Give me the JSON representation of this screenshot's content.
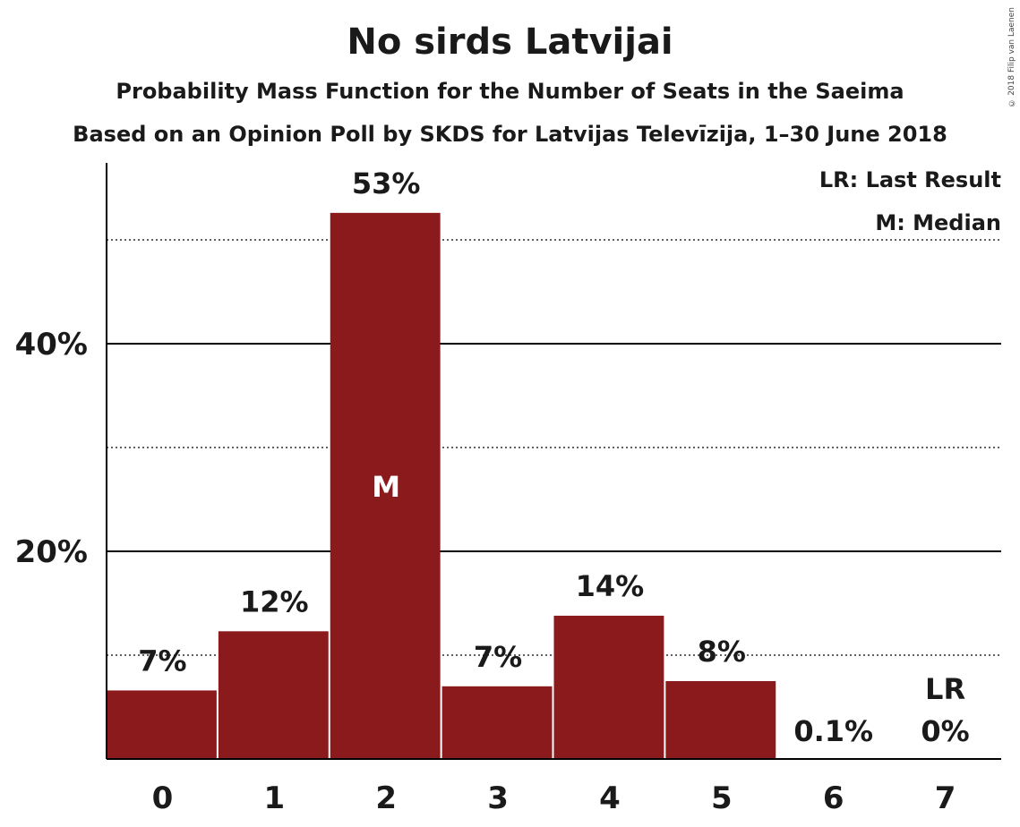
{
  "header": {
    "title": "No sirds Latvijai",
    "subtitle": "Probability Mass Function for the Number of Seats in the Saeima",
    "source": "Based on an Opinion Poll by SKDS for Latvijas Televīzija, 1–30 June 2018",
    "copyright": "© 2018 Filip van Laenen"
  },
  "legend": {
    "last_result": "LR: Last Result",
    "median": "M: Median"
  },
  "chart_data": {
    "type": "bar",
    "categories": [
      "0",
      "1",
      "2",
      "3",
      "4",
      "5",
      "6",
      "7"
    ],
    "values": [
      6.6,
      12.3,
      52.6,
      7.0,
      13.8,
      7.5,
      0.1,
      0
    ],
    "labels": [
      "7%",
      "12%",
      "53%",
      "7%",
      "14%",
      "8%",
      "0.1%",
      "0%"
    ],
    "median_index": 2,
    "median_marker": "M",
    "last_result_index": 7,
    "last_result_marker": "LR",
    "ylim": [
      0,
      57
    ],
    "yticks": [
      20,
      40
    ],
    "ytick_labels": [
      "20%",
      "40%"
    ],
    "minor_gridlines": [
      10,
      30,
      50
    ],
    "bar_color": "#8b1a1c",
    "grid": true,
    "legend_position": "top-right"
  }
}
